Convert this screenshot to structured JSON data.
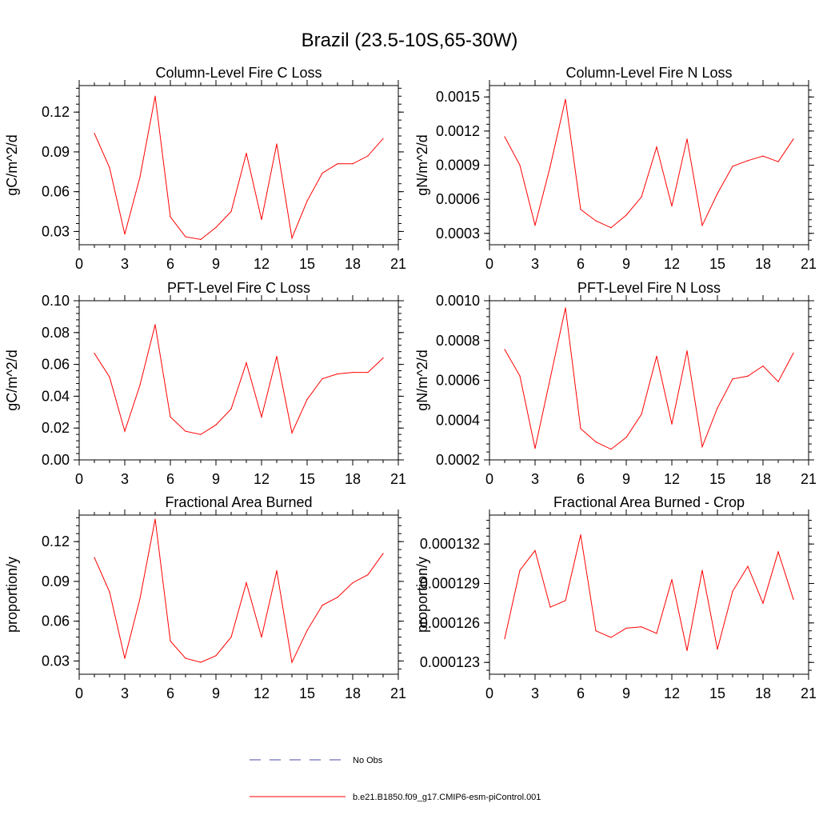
{
  "title": "Brazil (23.5-10S,65-30W)",
  "colors": {
    "series": "#ff0000",
    "no_obs": "#4a4aa8",
    "axis": "#000000",
    "background": "#ffffff"
  },
  "legend": [
    {
      "label": "No Obs",
      "style": "dashed",
      "color": "#4a4aa8"
    },
    {
      "label": "b.e21.B1850.f09_g17.CMIP6-esm-piControl.001",
      "style": "solid",
      "color": "#ff0000"
    }
  ],
  "chart_data": [
    {
      "type": "line",
      "title": "Column-Level Fire C Loss",
      "ylabel": "gC/m^2/d",
      "xlabel": "",
      "xlim": [
        0,
        21
      ],
      "ylim": [
        0.02,
        0.14
      ],
      "xticks": [
        0,
        3,
        6,
        9,
        12,
        15,
        18,
        21
      ],
      "xtick_labels": [
        "0",
        "3",
        "6",
        "9",
        "12",
        "15",
        "18",
        "21"
      ],
      "yticks": [
        0.03,
        0.06,
        0.09,
        0.12
      ],
      "ytick_labels": [
        "0.03",
        "0.06",
        "0.09",
        "0.12"
      ],
      "x": [
        1,
        2,
        3,
        4,
        5,
        6,
        7,
        8,
        9,
        10,
        11,
        12,
        13,
        14,
        15,
        16,
        17,
        18,
        19,
        20
      ],
      "series": [
        {
          "name": "b.e21.B1850.f09_g17.CMIP6-esm-piControl.001",
          "values": [
            0.104,
            0.078,
            0.028,
            0.071,
            0.132,
            0.041,
            0.026,
            0.024,
            0.033,
            0.045,
            0.089,
            0.039,
            0.096,
            0.025,
            0.053,
            0.074,
            0.081,
            0.081,
            0.087,
            0.1
          ]
        }
      ]
    },
    {
      "type": "line",
      "title": "Column-Level Fire N Loss",
      "ylabel": "gN/m^2/d",
      "xlabel": "",
      "xlim": [
        0,
        21
      ],
      "ylim": [
        0.0002,
        0.0016
      ],
      "xticks": [
        0,
        3,
        6,
        9,
        12,
        15,
        18,
        21
      ],
      "xtick_labels": [
        "0",
        "3",
        "6",
        "9",
        "12",
        "15",
        "18",
        "21"
      ],
      "yticks": [
        0.0003,
        0.0006,
        0.0009,
        0.0012,
        0.0015
      ],
      "ytick_labels": [
        "0.0003",
        "0.0006",
        "0.0009",
        "0.0012",
        "0.0015"
      ],
      "x": [
        1,
        2,
        3,
        4,
        5,
        6,
        7,
        8,
        9,
        10,
        11,
        12,
        13,
        14,
        15,
        16,
        17,
        18,
        19,
        20
      ],
      "series": [
        {
          "name": "b.e21.B1850.f09_g17.CMIP6-esm-piControl.001",
          "values": [
            0.00115,
            0.0009,
            0.00037,
            0.00089,
            0.00148,
            0.00051,
            0.00041,
            0.00035,
            0.00046,
            0.00062,
            0.00106,
            0.00054,
            0.00113,
            0.00037,
            0.00065,
            0.00089,
            0.00094,
            0.00098,
            0.00093,
            0.00113
          ]
        }
      ]
    },
    {
      "type": "line",
      "title": "PFT-Level Fire C Loss",
      "ylabel": "gC/m^2/d",
      "xlabel": "",
      "xlim": [
        0,
        21
      ],
      "ylim": [
        0.0,
        0.1
      ],
      "xticks": [
        0,
        3,
        6,
        9,
        12,
        15,
        18,
        21
      ],
      "xtick_labels": [
        "0",
        "3",
        "6",
        "9",
        "12",
        "15",
        "18",
        "21"
      ],
      "yticks": [
        0.0,
        0.02,
        0.04,
        0.06,
        0.08,
        0.1
      ],
      "ytick_labels": [
        "0.00",
        "0.02",
        "0.04",
        "0.06",
        "0.08",
        "0.10"
      ],
      "x": [
        1,
        2,
        3,
        4,
        5,
        6,
        7,
        8,
        9,
        10,
        11,
        12,
        13,
        14,
        15,
        16,
        17,
        18,
        19,
        20
      ],
      "series": [
        {
          "name": "b.e21.B1850.f09_g17.CMIP6-esm-piControl.001",
          "values": [
            0.067,
            0.052,
            0.018,
            0.047,
            0.085,
            0.027,
            0.018,
            0.016,
            0.022,
            0.032,
            0.061,
            0.027,
            0.065,
            0.017,
            0.038,
            0.051,
            0.054,
            0.055,
            0.055,
            0.064
          ]
        }
      ]
    },
    {
      "type": "line",
      "title": "PFT-Level Fire N Loss",
      "ylabel": "gN/m^2/d",
      "xlabel": "",
      "xlim": [
        0,
        21
      ],
      "ylim": [
        0.0002,
        0.001
      ],
      "xticks": [
        0,
        3,
        6,
        9,
        12,
        15,
        18,
        21
      ],
      "xtick_labels": [
        "0",
        "3",
        "6",
        "9",
        "12",
        "15",
        "18",
        "21"
      ],
      "yticks": [
        0.0002,
        0.0004,
        0.0006,
        0.0008,
        0.001
      ],
      "ytick_labels": [
        "0.0002",
        "0.0004",
        "0.0006",
        "0.0008",
        "0.0010"
      ],
      "x": [
        1,
        2,
        3,
        4,
        5,
        6,
        7,
        8,
        9,
        10,
        11,
        12,
        13,
        14,
        15,
        16,
        17,
        18,
        19,
        20
      ],
      "series": [
        {
          "name": "b.e21.B1850.f09_g17.CMIP6-esm-piControl.001",
          "values": [
            0.000755,
            0.000622,
            0.000258,
            0.000611,
            0.000964,
            0.000357,
            0.00029,
            0.000254,
            0.000313,
            0.000429,
            0.000721,
            0.00038,
            0.000748,
            0.000266,
            0.000461,
            0.000607,
            0.000621,
            0.000672,
            0.000593,
            0.000737
          ]
        }
      ]
    },
    {
      "type": "line",
      "title": "Fractional Area Burned",
      "ylabel": "proportion/y",
      "xlabel": "",
      "xlim": [
        0,
        21
      ],
      "ylim": [
        0.02,
        0.14
      ],
      "xticks": [
        0,
        3,
        6,
        9,
        12,
        15,
        18,
        21
      ],
      "xtick_labels": [
        "0",
        "3",
        "6",
        "9",
        "12",
        "15",
        "18",
        "21"
      ],
      "yticks": [
        0.03,
        0.06,
        0.09,
        0.12
      ],
      "ytick_labels": [
        "0.03",
        "0.06",
        "0.09",
        "0.12"
      ],
      "x": [
        1,
        2,
        3,
        4,
        5,
        6,
        7,
        8,
        9,
        10,
        11,
        12,
        13,
        14,
        15,
        16,
        17,
        18,
        19,
        20
      ],
      "series": [
        {
          "name": "b.e21.B1850.f09_g17.CMIP6-esm-piControl.001",
          "values": [
            0.108,
            0.082,
            0.032,
            0.077,
            0.137,
            0.045,
            0.032,
            0.029,
            0.034,
            0.048,
            0.089,
            0.048,
            0.098,
            0.029,
            0.053,
            0.072,
            0.078,
            0.089,
            0.095,
            0.111
          ]
        }
      ]
    },
    {
      "type": "line",
      "title": "Fractional Area Burned - Crop",
      "ylabel": "proportion/y",
      "xlabel": "",
      "xlim": [
        0,
        21
      ],
      "ylim": [
        0.0001221,
        0.0001342
      ],
      "xticks": [
        0,
        3,
        6,
        9,
        12,
        15,
        18,
        21
      ],
      "xtick_labels": [
        "0",
        "3",
        "6",
        "9",
        "12",
        "15",
        "18",
        "21"
      ],
      "yticks": [
        0.000123,
        0.000126,
        0.000129,
        0.000132
      ],
      "ytick_labels": [
        "0.000123",
        "0.000126",
        "0.000129",
        "0.000132"
      ],
      "x": [
        1,
        2,
        3,
        4,
        5,
        6,
        7,
        8,
        9,
        10,
        11,
        12,
        13,
        14,
        15,
        16,
        17,
        18,
        19,
        20
      ],
      "series": [
        {
          "name": "b.e21.B1850.f09_g17.CMIP6-esm-piControl.001",
          "values": [
            0.0001248,
            0.00013,
            0.0001315,
            0.0001272,
            0.0001277,
            0.0001327,
            0.0001254,
            0.0001249,
            0.0001256,
            0.0001257,
            0.0001252,
            0.0001293,
            0.0001239,
            0.00013,
            0.000124,
            0.0001284,
            0.0001303,
            0.0001275,
            0.0001314,
            0.0001278
          ]
        }
      ]
    }
  ]
}
